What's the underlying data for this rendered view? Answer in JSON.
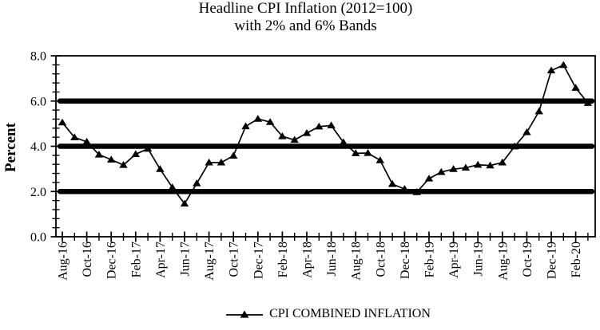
{
  "title": {
    "line1": "Headline CPI Inflation (2012=100)",
    "line2": "with 2% and 6% Bands"
  },
  "legend": {
    "label": "CPI COMBINED INFLATION",
    "marker_icon": "filled-triangle-on-line"
  },
  "colors": {
    "foreground": "#000000",
    "background": "#ffffff"
  },
  "chart_data": {
    "type": "line",
    "title": "Headline CPI Inflation (2012=100) with 2% and 6% Bands",
    "xlabel": "",
    "ylabel": "Percent",
    "ylim": [
      0.0,
      8.0
    ],
    "y_major_unit": 2.0,
    "y_minor_unit": 0.4,
    "y_tick_labels": [
      "0.0",
      "2.0",
      "4.0",
      "6.0",
      "8.0"
    ],
    "band_lines_percent": [
      2.0,
      4.0,
      6.0
    ],
    "grid": false,
    "legend_position": "bottom",
    "x_labeled_every_n_months": 2,
    "categories": [
      "Aug-16",
      "Sep-16",
      "Oct-16",
      "Nov-16",
      "Dec-16",
      "Jan-17",
      "Feb-17",
      "Mar-17",
      "Apr-17",
      "May-17",
      "Jun-17",
      "Jul-17",
      "Aug-17",
      "Sep-17",
      "Oct-17",
      "Nov-17",
      "Dec-17",
      "Jan-18",
      "Feb-18",
      "Mar-18",
      "Apr-18",
      "May-18",
      "Jun-18",
      "Jul-18",
      "Aug-18",
      "Sep-18",
      "Oct-18",
      "Nov-18",
      "Dec-18",
      "Jan-19",
      "Feb-19",
      "Mar-19",
      "Apr-19",
      "May-19",
      "Jun-19",
      "Jul-19",
      "Aug-19",
      "Sep-19",
      "Oct-19",
      "Nov-19",
      "Dec-19",
      "Jan-20",
      "Feb-20",
      "Mar-20"
    ],
    "series": [
      {
        "name": "CPI COMBINED INFLATION",
        "marker": "triangle",
        "color": "#000000",
        "values": [
          5.05,
          4.39,
          4.2,
          3.63,
          3.41,
          3.17,
          3.65,
          3.89,
          2.99,
          2.18,
          1.46,
          2.36,
          3.28,
          3.28,
          3.58,
          4.88,
          5.21,
          5.07,
          4.44,
          4.28,
          4.58,
          4.87,
          4.92,
          4.17,
          3.69,
          3.7,
          3.38,
          2.33,
          2.11,
          1.97,
          2.57,
          2.86,
          2.99,
          3.05,
          3.18,
          3.15,
          3.28,
          3.99,
          4.62,
          5.54,
          7.35,
          7.59,
          6.58,
          5.91
        ]
      }
    ]
  }
}
